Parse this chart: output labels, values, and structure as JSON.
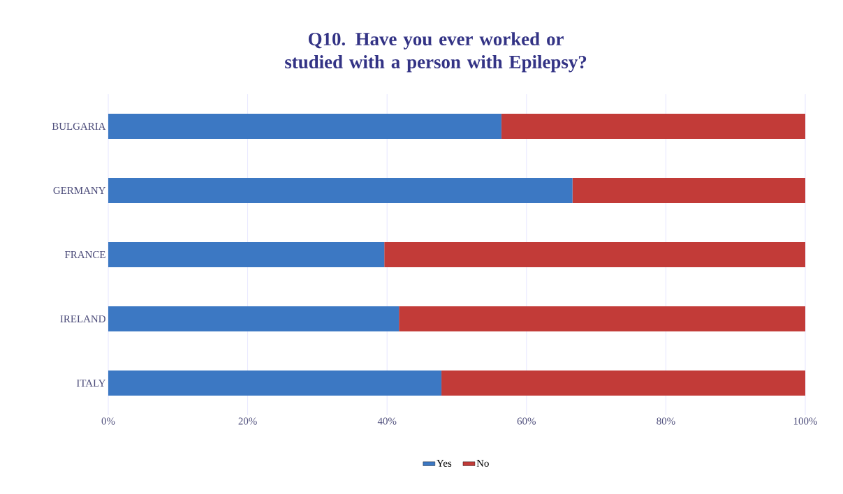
{
  "chart_data": {
    "type": "bar",
    "orientation": "horizontal",
    "stacked": true,
    "title": "Q10. Have you ever worked or studied with a person with Epilepsy?",
    "categories": [
      "BULGARIA",
      "GERMANY",
      "FRANCE",
      "IRELAND",
      "ITALY"
    ],
    "series": [
      {
        "name": "Yes",
        "color": "#3c78c3",
        "values": [
          56.4,
          66.6,
          39.6,
          41.7,
          47.8
        ]
      },
      {
        "name": "No",
        "color": "#c23b38",
        "values": [
          43.6,
          33.4,
          60.4,
          58.3,
          52.2
        ]
      }
    ],
    "xlim": [
      0,
      100
    ],
    "xticks": [
      {
        "value": 0,
        "label": "0%"
      },
      {
        "value": 20,
        "label": "20%"
      },
      {
        "value": 40,
        "label": "40%"
      },
      {
        "value": 60,
        "label": "60%"
      },
      {
        "value": 80,
        "label": "80%"
      },
      {
        "value": 100,
        "label": "100%"
      }
    ],
    "grid": "x",
    "legend": "bottom"
  }
}
